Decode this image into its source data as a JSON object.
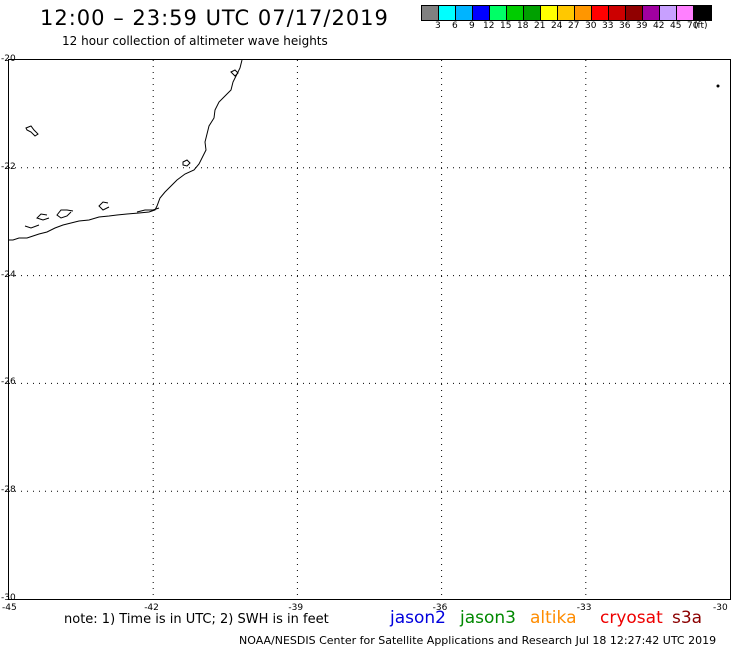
{
  "header": {
    "title": "12:00 – 23:59 UTC 07/17/2019",
    "subtitle": "12 hour collection of altimeter wave heights"
  },
  "colorbar": {
    "colors": [
      "#808080",
      "#00ffff",
      "#00b4ff",
      "#0000ff",
      "#00ff66",
      "#00cc00",
      "#00a000",
      "#ffff00",
      "#ffc800",
      "#ff9600",
      "#ff0000",
      "#cc0000",
      "#900000",
      "#a000a0",
      "#c8a0ff",
      "#ff80ff",
      "#000000"
    ],
    "labels": [
      "3",
      "6",
      "9",
      "12",
      "15",
      "18",
      "21",
      "24",
      "27",
      "30",
      "33",
      "36",
      "39",
      "42",
      "45",
      "70"
    ],
    "unit": "(ft)"
  },
  "map": {
    "lon_range": [
      -45,
      -30
    ],
    "lat_range": [
      -30,
      -20
    ],
    "lon_ticks": [
      "-45",
      "-42",
      "-39",
      "-36",
      "-33",
      "-30"
    ],
    "lat_ticks": [
      "-20",
      "-22",
      "-24",
      "-26",
      "-28",
      "-30"
    ],
    "grid": true,
    "coastline_icon": "coastline-shape",
    "island_icon": "island-dot"
  },
  "footer": {
    "note": "note: 1) Time is in UTC; 2) SWH is in feet",
    "satellites": [
      {
        "name": "jason2",
        "color": "#0000dd"
      },
      {
        "name": "jason3",
        "color": "#008800"
      },
      {
        "name": "altika",
        "color": "#ff8c00"
      },
      {
        "name": "cryosat",
        "color": "#ee0000"
      },
      {
        "name": "s3a",
        "color": "#8b0000"
      }
    ],
    "credit": "NOAA/NESDIS Center for Satellite Applications and Research   Jul 18 12:27:42 UTC 2019"
  }
}
